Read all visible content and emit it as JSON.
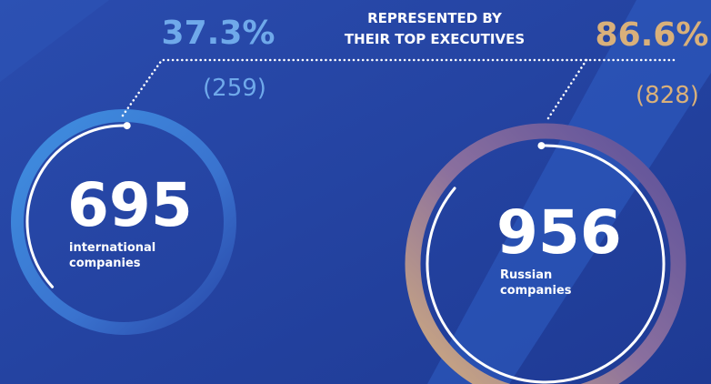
{
  "heading": {
    "lines": [
      "REPRESENTED BY",
      "THEIR TOP EXECUTIVES"
    ]
  },
  "groups": [
    {
      "share": "37.3%",
      "count": "(259)",
      "total": "695",
      "label": [
        "international",
        "companies"
      ]
    },
    {
      "share": "86.6%",
      "count": "(828)",
      "total": "956",
      "label": [
        "Russian",
        "companies"
      ]
    }
  ]
}
